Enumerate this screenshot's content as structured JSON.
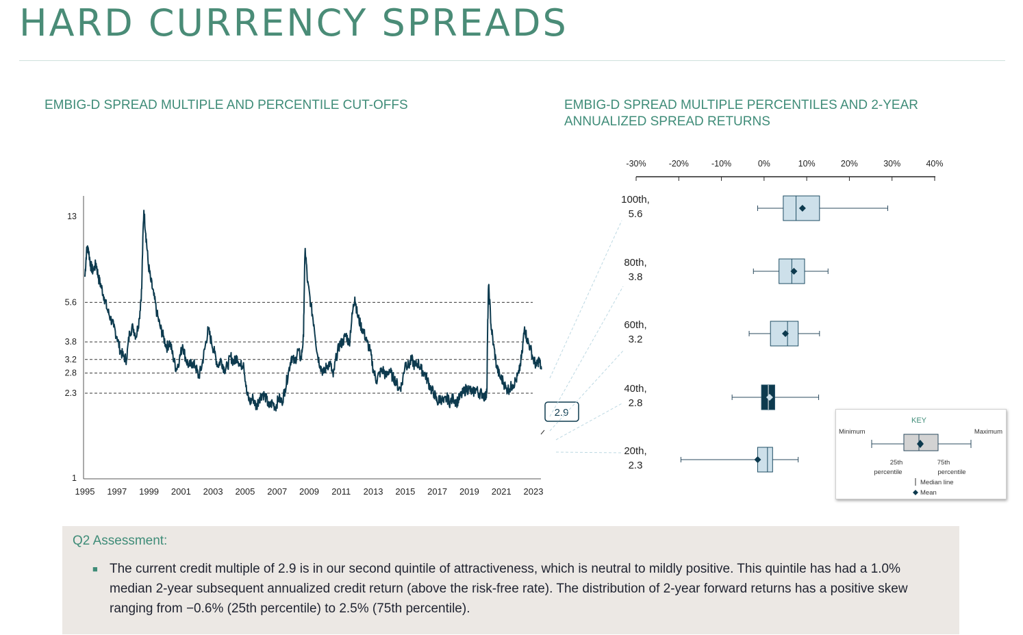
{
  "page": {
    "title": "HARD CURRENCY SPREADS"
  },
  "colors": {
    "title": "#4a8c77",
    "line": "#0d3a4e",
    "box_fill": "#cde0ea",
    "box_stroke": "#1d4c63",
    "highlight_box": "#0d3a4e",
    "key_box": "#d0d0d0",
    "assessment_bg": "#ece8e4",
    "accent": "#3f8c78"
  },
  "chart_data": [
    {
      "type": "line",
      "title": "EMBIG-D SPREAD MULTIPLE AND PERCENTILE CUT-OFFS",
      "xlabel": "",
      "ylabel": "",
      "x_tick_labels": [
        "1995",
        "1997",
        "1999",
        "2001",
        "2003",
        "2005",
        "2007",
        "2009",
        "2011",
        "2013",
        "2015",
        "2017",
        "2019",
        "2021",
        "2023"
      ],
      "y_tick_labels": [
        "1",
        "2.3",
        "2.8",
        "3.2",
        "3.8",
        "5.6",
        "13"
      ],
      "y_scale": "log",
      "ylim": [
        1,
        15
      ],
      "xlim": [
        1995,
        2023.6
      ],
      "reference_lines": [
        5.6,
        3.8,
        3.2,
        2.8,
        2.3
      ],
      "current_value_label": "2.9",
      "series": [
        {
          "points": [
            [
              1995.0,
              7.2
            ],
            [
              1995.1,
              9.2
            ],
            [
              1995.2,
              9.6
            ],
            [
              1995.35,
              8.1
            ],
            [
              1995.5,
              7.6
            ],
            [
              1995.7,
              8.2
            ],
            [
              1995.85,
              7.1
            ],
            [
              1996.0,
              6.6
            ],
            [
              1996.2,
              5.9
            ],
            [
              1996.4,
              5.2
            ],
            [
              1996.6,
              4.8
            ],
            [
              1996.8,
              4.4
            ],
            [
              1997.0,
              4.0
            ],
            [
              1997.2,
              3.5
            ],
            [
              1997.4,
              3.3
            ],
            [
              1997.6,
              3.2
            ],
            [
              1997.8,
              4.2
            ],
            [
              1998.0,
              4.4
            ],
            [
              1998.2,
              4.0
            ],
            [
              1998.4,
              4.8
            ],
            [
              1998.55,
              6.4
            ],
            [
              1998.68,
              13.8
            ],
            [
              1998.8,
              11.0
            ],
            [
              1998.95,
              8.2
            ],
            [
              1999.1,
              7.0
            ],
            [
              1999.3,
              6.0
            ],
            [
              1999.5,
              5.0
            ],
            [
              1999.7,
              4.4
            ],
            [
              1999.9,
              4.0
            ],
            [
              2000.1,
              3.6
            ],
            [
              2000.3,
              3.8
            ],
            [
              2000.5,
              3.3
            ],
            [
              2000.7,
              2.9
            ],
            [
              2000.9,
              3.2
            ],
            [
              2001.1,
              3.7
            ],
            [
              2001.3,
              3.2
            ],
            [
              2001.5,
              3.0
            ],
            [
              2001.7,
              3.1
            ],
            [
              2001.9,
              3.0
            ],
            [
              2002.1,
              2.7
            ],
            [
              2002.3,
              3.0
            ],
            [
              2002.5,
              3.6
            ],
            [
              2002.7,
              4.3
            ],
            [
              2002.9,
              3.8
            ],
            [
              2003.1,
              3.4
            ],
            [
              2003.3,
              3.0
            ],
            [
              2003.5,
              3.2
            ],
            [
              2003.7,
              2.9
            ],
            [
              2003.9,
              3.0
            ],
            [
              2004.1,
              3.3
            ],
            [
              2004.3,
              3.1
            ],
            [
              2004.5,
              3.3
            ],
            [
              2004.7,
              3.0
            ],
            [
              2004.9,
              3.1
            ],
            [
              2005.1,
              2.3
            ],
            [
              2005.3,
              2.1
            ],
            [
              2005.5,
              2.2
            ],
            [
              2005.7,
              2.0
            ],
            [
              2005.9,
              2.2
            ],
            [
              2006.1,
              2.3
            ],
            [
              2006.3,
              2.2
            ],
            [
              2006.5,
              2.0
            ],
            [
              2006.7,
              2.1
            ],
            [
              2006.9,
              2.0
            ],
            [
              2007.1,
              2.2
            ],
            [
              2007.3,
              2.1
            ],
            [
              2007.5,
              2.4
            ],
            [
              2007.7,
              2.8
            ],
            [
              2007.9,
              3.3
            ],
            [
              2008.1,
              3.1
            ],
            [
              2008.3,
              3.5
            ],
            [
              2008.5,
              3.2
            ],
            [
              2008.65,
              4.0
            ],
            [
              2008.75,
              9.5
            ],
            [
              2008.9,
              6.8
            ],
            [
              2009.1,
              5.5
            ],
            [
              2009.3,
              4.5
            ],
            [
              2009.5,
              3.4
            ],
            [
              2009.7,
              3.0
            ],
            [
              2009.9,
              2.8
            ],
            [
              2010.1,
              3.0
            ],
            [
              2010.3,
              3.1
            ],
            [
              2010.5,
              2.7
            ],
            [
              2010.7,
              3.3
            ],
            [
              2010.9,
              3.7
            ],
            [
              2011.1,
              3.8
            ],
            [
              2011.3,
              4.1
            ],
            [
              2011.5,
              3.7
            ],
            [
              2011.7,
              5.0
            ],
            [
              2011.85,
              5.9
            ],
            [
              2012.0,
              5.0
            ],
            [
              2012.2,
              4.5
            ],
            [
              2012.4,
              4.2
            ],
            [
              2012.6,
              3.8
            ],
            [
              2012.8,
              3.5
            ],
            [
              2013.0,
              2.9
            ],
            [
              2013.2,
              2.6
            ],
            [
              2013.4,
              2.8
            ],
            [
              2013.6,
              2.9
            ],
            [
              2013.8,
              2.7
            ],
            [
              2014.0,
              2.9
            ],
            [
              2014.2,
              2.7
            ],
            [
              2014.4,
              2.6
            ],
            [
              2014.6,
              2.4
            ],
            [
              2014.8,
              2.5
            ],
            [
              2015.0,
              3.1
            ],
            [
              2015.2,
              3.0
            ],
            [
              2015.4,
              3.2
            ],
            [
              2015.6,
              3.0
            ],
            [
              2015.8,
              3.1
            ],
            [
              2016.0,
              2.9
            ],
            [
              2016.2,
              2.8
            ],
            [
              2016.4,
              2.6
            ],
            [
              2016.6,
              2.4
            ],
            [
              2016.8,
              2.3
            ],
            [
              2017.0,
              2.1
            ],
            [
              2017.2,
              2.2
            ],
            [
              2017.4,
              2.1
            ],
            [
              2017.6,
              2.2
            ],
            [
              2017.8,
              2.1
            ],
            [
              2018.0,
              2.2
            ],
            [
              2018.2,
              2.1
            ],
            [
              2018.4,
              2.2
            ],
            [
              2018.6,
              2.3
            ],
            [
              2018.8,
              2.4
            ],
            [
              2019.0,
              2.4
            ],
            [
              2019.2,
              2.3
            ],
            [
              2019.4,
              2.4
            ],
            [
              2019.6,
              2.3
            ],
            [
              2019.8,
              2.3
            ],
            [
              2020.0,
              2.2
            ],
            [
              2020.1,
              2.4
            ],
            [
              2020.2,
              6.6
            ],
            [
              2020.35,
              4.5
            ],
            [
              2020.5,
              3.7
            ],
            [
              2020.7,
              3.0
            ],
            [
              2020.9,
              2.7
            ],
            [
              2021.1,
              2.6
            ],
            [
              2021.3,
              2.4
            ],
            [
              2021.5,
              2.4
            ],
            [
              2021.7,
              2.5
            ],
            [
              2021.9,
              2.6
            ],
            [
              2022.1,
              2.8
            ],
            [
              2022.3,
              3.4
            ],
            [
              2022.45,
              4.4
            ],
            [
              2022.6,
              3.9
            ],
            [
              2022.8,
              3.6
            ],
            [
              2023.0,
              3.2
            ],
            [
              2023.2,
              3.0
            ],
            [
              2023.35,
              3.2
            ],
            [
              2023.5,
              2.9
            ]
          ]
        }
      ]
    },
    {
      "type": "box",
      "title": "EMBIG-D SPREAD MULTIPLE PERCENTILES AND 2-YEAR ANNUALIZED SPREAD RETURNS",
      "x_tick_labels": [
        "-30%",
        "-20%",
        "-10%",
        "0%",
        "10%",
        "20%",
        "30%",
        "40%"
      ],
      "xlim": [
        -30,
        40
      ],
      "categories": [
        {
          "label_line1": "100th,",
          "label_line2": "5.6",
          "min": -1.5,
          "q1": 4.5,
          "median": 7.5,
          "mean": 9.0,
          "q3": 13.0,
          "max": 29.0,
          "highlight": false
        },
        {
          "label_line1": "80th,",
          "label_line2": "3.8",
          "min": -2.5,
          "q1": 3.5,
          "median": 6.5,
          "mean": 7.0,
          "q3": 9.5,
          "max": 15.0,
          "highlight": false
        },
        {
          "label_line1": "60th,",
          "label_line2": "3.2",
          "min": -3.5,
          "q1": 1.5,
          "median": 5.5,
          "mean": 5.0,
          "q3": 8.0,
          "max": 13.0,
          "highlight": false
        },
        {
          "label_line1": "40th,",
          "label_line2": "2.8",
          "min": -7.5,
          "q1": -0.6,
          "median": 1.0,
          "mean": 1.3,
          "q3": 2.5,
          "max": 12.8,
          "highlight": true
        },
        {
          "label_line1": "20th,",
          "label_line2": "2.3",
          "min": -19.5,
          "q1": -1.5,
          "median": 0.8,
          "mean": -1.5,
          "q3": 2.0,
          "max": 8.0,
          "highlight": false
        }
      ]
    }
  ],
  "key": {
    "title": "KEY",
    "minimum": "Minimum",
    "maximum": "Maximum",
    "p25_line1": "25th",
    "p25_line2": "percentile",
    "p75_line1": "75th",
    "p75_line2": "percentile",
    "median": "Median line",
    "mean": "Mean"
  },
  "assessment": {
    "title": "Q2 Assessment:",
    "bullets": [
      "The current credit multiple of 2.9 is in our second quintile of attractiveness, which is neutral to mildly positive. This quintile has had a 1.0% median 2-year subsequent annualized credit return (above the risk-free rate). The distribution of 2-year forward returns has a positive skew ranging from −0.6% (25th percentile) to 2.5% (75th percentile)."
    ]
  }
}
